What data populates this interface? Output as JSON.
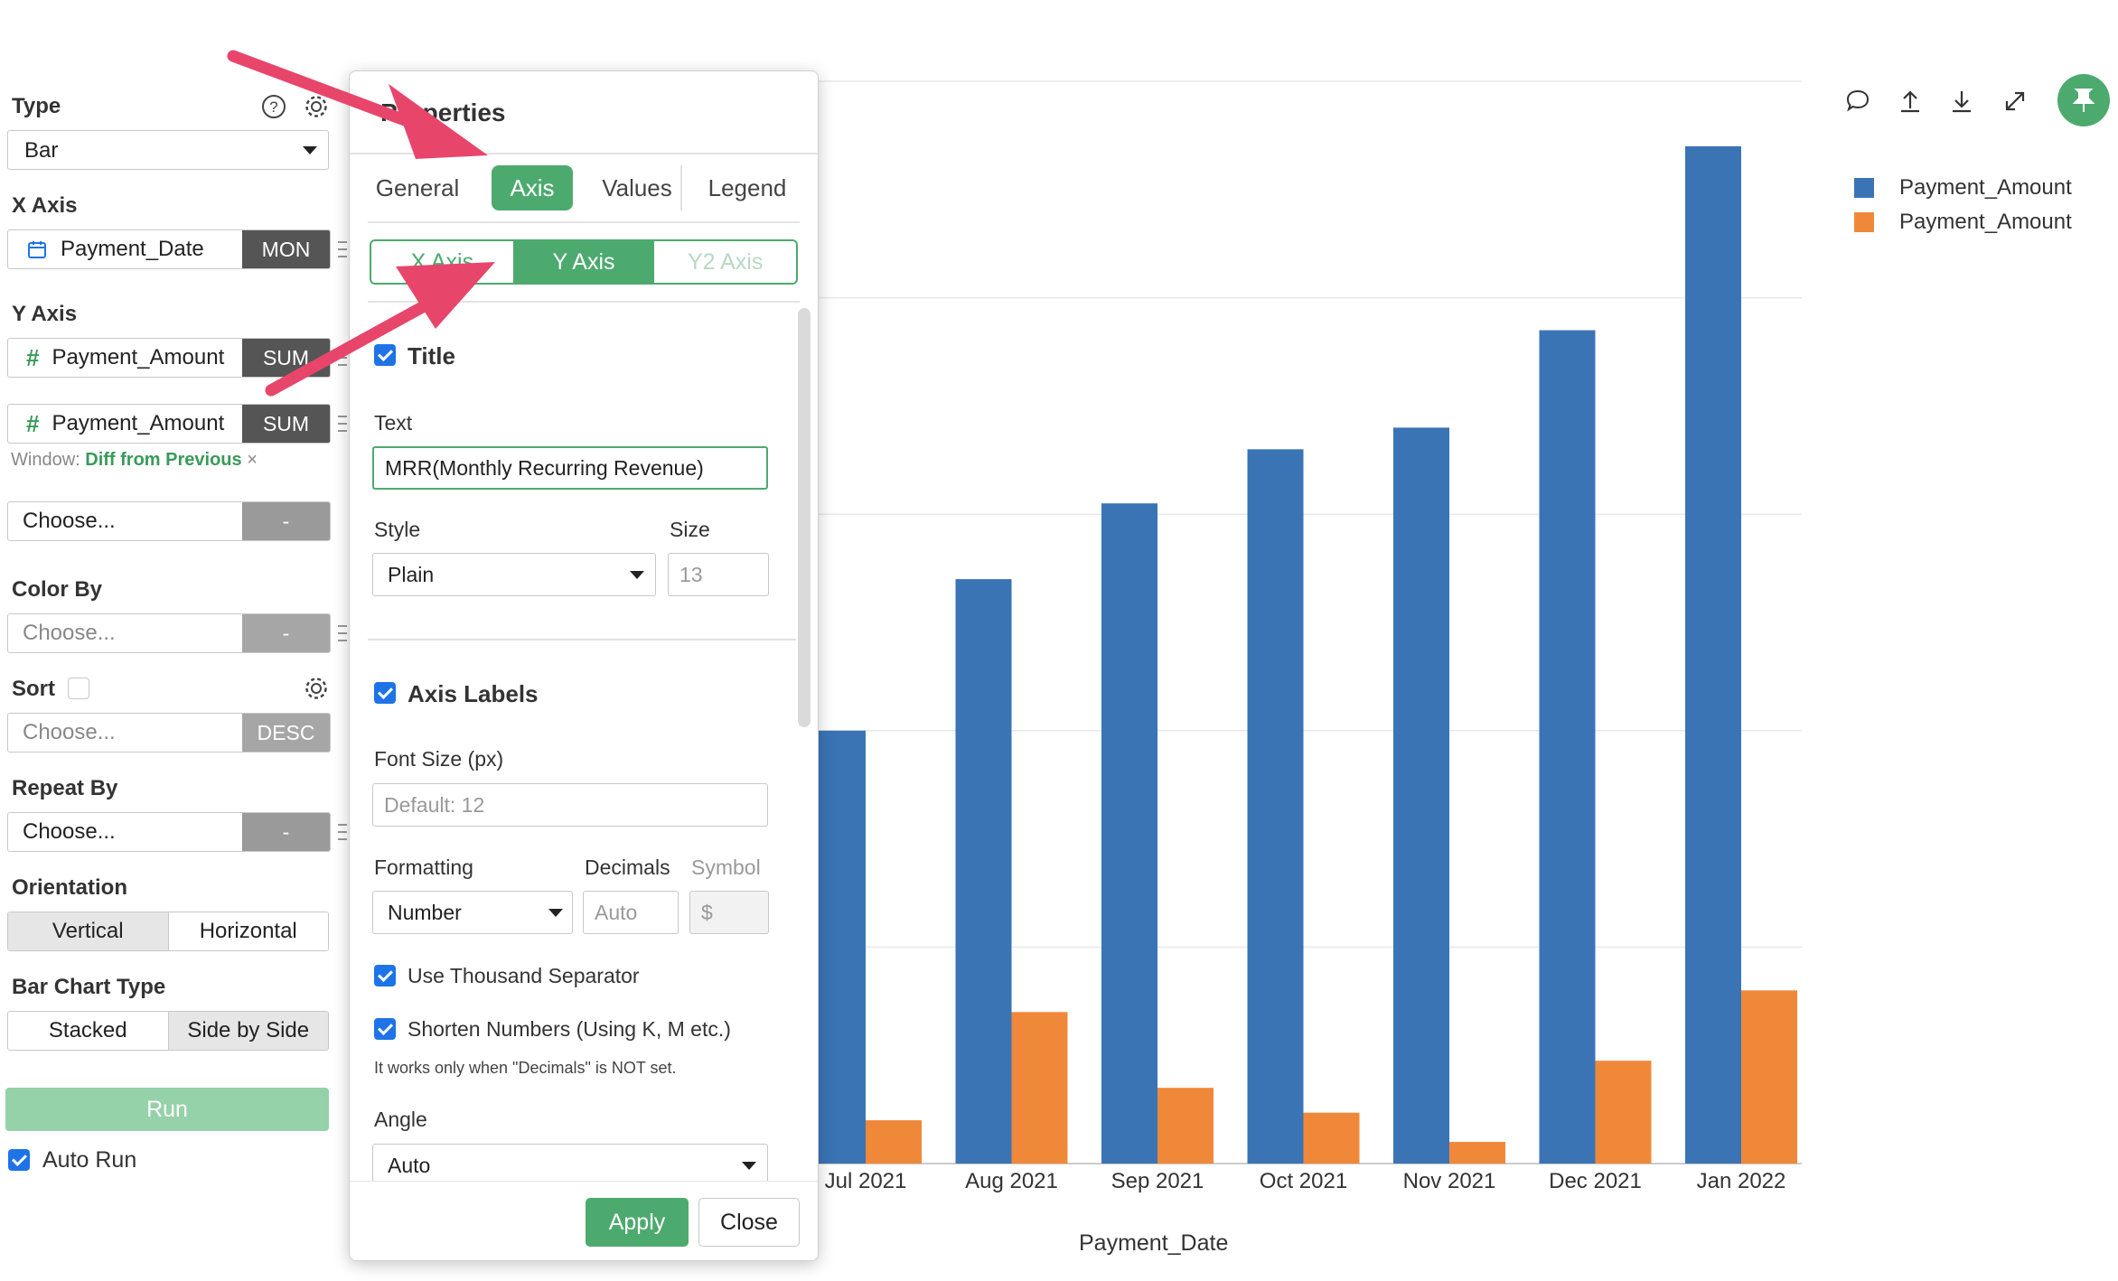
{
  "left_panel": {
    "type": {
      "label": "Type",
      "value": "Bar"
    },
    "x_axis": {
      "label": "X Axis",
      "field": "Payment_Date",
      "agg": "MON"
    },
    "y_axis": {
      "label": "Y Axis",
      "fields": [
        {
          "field": "Payment_Amount",
          "agg": "SUM"
        },
        {
          "field": "Payment_Amount",
          "agg": "SUM"
        }
      ],
      "window_label": "Window:",
      "window_value": "Diff from Previous",
      "window_remove": "×",
      "choose": "Choose...",
      "choose_agg": "-"
    },
    "color_by": {
      "label": "Color By",
      "placeholder": "Choose...",
      "agg": "-"
    },
    "sort": {
      "label": "Sort",
      "placeholder": "Choose...",
      "agg": "DESC"
    },
    "repeat_by": {
      "label": "Repeat By",
      "placeholder": "Choose...",
      "agg": "-"
    },
    "orientation": {
      "label": "Orientation",
      "options": [
        "Vertical",
        "Horizontal"
      ],
      "selected": "Vertical"
    },
    "bar_chart_type": {
      "label": "Bar Chart Type",
      "options": [
        "Stacked",
        "Side by Side"
      ],
      "selected": "Side by Side"
    },
    "run_label": "Run",
    "auto_run_label": "Auto Run"
  },
  "dialog": {
    "title": "Properties",
    "tabs": [
      "General",
      "Axis",
      "Values",
      "Legend"
    ],
    "active_tab": "Axis",
    "subtabs": [
      "X Axis",
      "Y Axis",
      "Y2 Axis"
    ],
    "active_subtab": "Y Axis",
    "title_section": {
      "checkbox_label": "Title",
      "text_label": "Text",
      "text_value": "MRR(Monthly Recurring Revenue)",
      "style_label": "Style",
      "style_value": "Plain",
      "size_label": "Size",
      "size_placeholder": "13"
    },
    "axis_labels": {
      "checkbox_label": "Axis Labels",
      "font_size_label": "Font Size (px)",
      "font_size_placeholder": "Default: 12",
      "formatting_label": "Formatting",
      "formatting_value": "Number",
      "decimals_label": "Decimals",
      "decimals_placeholder": "Auto",
      "symbol_label": "Symbol",
      "symbol_placeholder": "$",
      "thousand_sep_label": "Use Thousand Separator",
      "shorten_label": "Shorten Numbers (Using K, M etc.)",
      "shorten_note": "It works only when \"Decimals\" is NOT set.",
      "angle_label": "Angle",
      "angle_value": "Auto"
    },
    "apply_label": "Apply",
    "close_label": "Close"
  },
  "chart_data": {
    "type": "bar",
    "categories": [
      "Jul 2021",
      "Aug 2021",
      "Sep 2021",
      "Oct 2021",
      "Nov 2021",
      "Dec 2021",
      "Jan 2022"
    ],
    "series": [
      {
        "name": "Payment_Amount",
        "color": "#3a74b5",
        "values": [
          4.0,
          5.4,
          6.1,
          6.6,
          6.8,
          7.7,
          9.4
        ]
      },
      {
        "name": "Payment_Amount",
        "color": "#f0883a",
        "values": [
          0.4,
          1.4,
          0.7,
          0.47,
          0.2,
          0.95,
          1.6
        ]
      }
    ],
    "xlabel": "Payment_Date",
    "ylim": [
      0,
      10
    ],
    "grid": true,
    "legend": "top-right"
  },
  "colors": {
    "accent": "#4daa6e",
    "annotation_arrow": "#e8456b"
  }
}
